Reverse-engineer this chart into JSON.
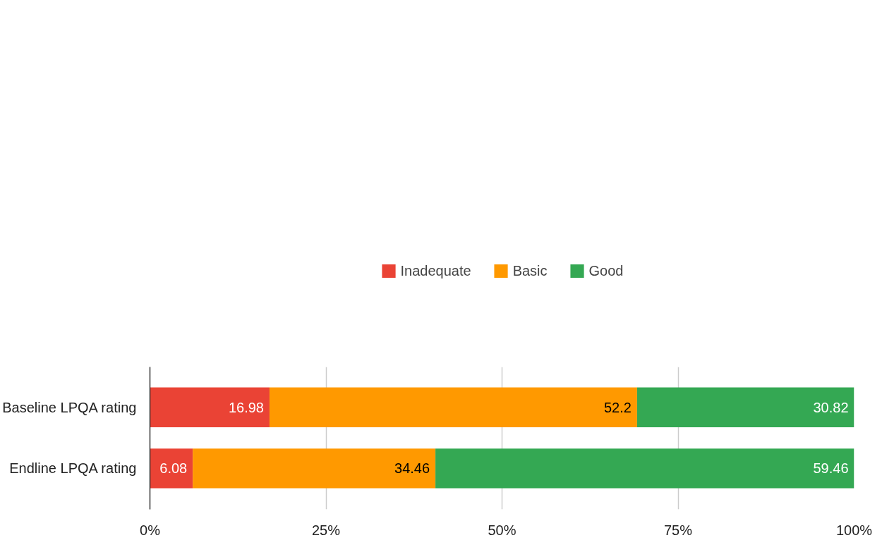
{
  "chart_data": {
    "type": "bar",
    "orientation": "horizontal",
    "stacked": true,
    "categories": [
      "Baseline LPQA rating",
      "Endline LPQA rating"
    ],
    "series": [
      {
        "name": "Inadequate",
        "color": "#ea4335",
        "values": [
          16.98,
          6.08
        ]
      },
      {
        "name": "Basic",
        "color": "#ff9900",
        "values": [
          52.2,
          34.46
        ]
      },
      {
        "name": "Good",
        "color": "#34a853",
        "values": [
          30.82,
          59.46
        ]
      }
    ],
    "xlim": [
      0,
      100
    ],
    "xticks": [
      {
        "value": 0,
        "label": "0%"
      },
      {
        "value": 25,
        "label": "25%"
      },
      {
        "value": 50,
        "label": "50%"
      },
      {
        "value": 75,
        "label": "75%"
      },
      {
        "value": 100,
        "label": "100%"
      }
    ],
    "grid": "x",
    "legend": "top",
    "data_labels": true
  }
}
